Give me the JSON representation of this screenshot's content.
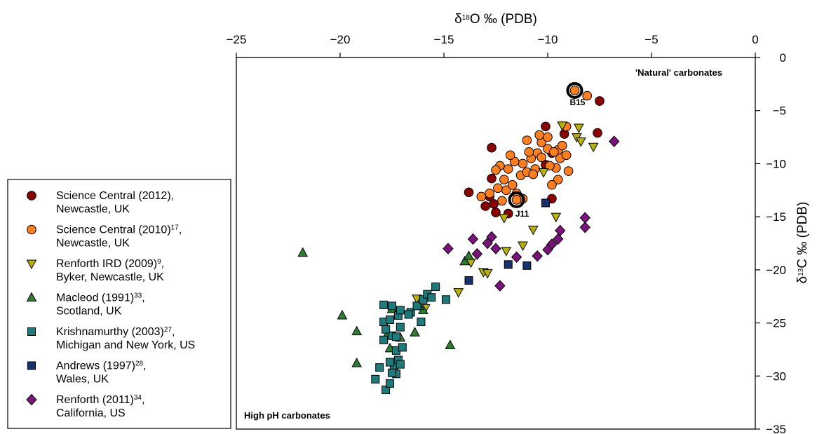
{
  "chart_data": {
    "type": "scatter",
    "xlabel": {
      "prefix": "δ",
      "sup": "18",
      "suffix": "O ‰ (PDB)"
    },
    "ylabel": {
      "prefix": "δ",
      "sup": "13",
      "suffix": "C ‰ (PDB)"
    },
    "xlim": [
      -25,
      0
    ],
    "ylim": [
      -35,
      0
    ],
    "xticks": [
      -25,
      -20,
      -15,
      -10,
      -5,
      0
    ],
    "yticks": [
      0,
      -5,
      -10,
      -15,
      -20,
      -25,
      -30,
      -35
    ],
    "x_axis_position": "top",
    "y_axis_position": "right",
    "grid": false,
    "legend_position": "left",
    "annotations": [
      {
        "text": "'Natural' carbonates",
        "x": -6.4,
        "y": -1.5
      },
      {
        "text": "High pH carbonates",
        "x": -24.7,
        "y": -33.3
      }
    ],
    "highlighted_points": [
      {
        "label": "B15",
        "x": -8.7,
        "y": -3.1
      },
      {
        "label": "J11",
        "x": -11.5,
        "y": -13.4
      }
    ],
    "series": [
      {
        "name": "Science Central (2012), Newcastle, UK",
        "legend": {
          "line1": "Science Central (2012),",
          "sup": "",
          "line2": "Newcastle, UK"
        },
        "marker": "circle",
        "color": "#8b0000",
        "points": [
          [
            -7.5,
            -4.1
          ],
          [
            -7.6,
            -7.1
          ],
          [
            -9.2,
            -7.2
          ],
          [
            -10.1,
            -6.5
          ],
          [
            -12.7,
            -8.5
          ],
          [
            -12.7,
            -11.4
          ],
          [
            -10.1,
            -10.1
          ],
          [
            -13.8,
            -12.7
          ],
          [
            -13.0,
            -14.0
          ],
          [
            -12.8,
            -13.1
          ],
          [
            -12.6,
            -13.8
          ],
          [
            -12.5,
            -14.6
          ],
          [
            -11.9,
            -14.7
          ],
          [
            -9.8,
            -13.3
          ],
          [
            -9.8,
            -9.0
          ]
        ]
      },
      {
        "name": "Science Central (2010), Newcastle, UK",
        "legend": {
          "line1": "Science Central (2010)",
          "sup": "17",
          "line2": "Newcastle, UK"
        },
        "marker": "circle",
        "color": "#ff7f1f",
        "points": [
          [
            -8.1,
            -3.6
          ],
          [
            -9.1,
            -6.5
          ],
          [
            -9.5,
            -8.7
          ],
          [
            -10.3,
            -8.0
          ],
          [
            -10.0,
            -7.5
          ],
          [
            -10.5,
            -9.0
          ],
          [
            -11.0,
            -7.8
          ],
          [
            -10.8,
            -9.5
          ],
          [
            -11.2,
            -10.0
          ],
          [
            -11.6,
            -9.8
          ],
          [
            -11.9,
            -10.5
          ],
          [
            -12.1,
            -11.5
          ],
          [
            -12.3,
            -10.2
          ],
          [
            -12.5,
            -10.6
          ],
          [
            -12.0,
            -12.5
          ],
          [
            -11.7,
            -12.0
          ],
          [
            -11.3,
            -11.1
          ],
          [
            -11.0,
            -10.8
          ],
          [
            -10.6,
            -10.5
          ],
          [
            -10.3,
            -9.4
          ],
          [
            -10.0,
            -8.6
          ],
          [
            -9.7,
            -8.9
          ],
          [
            -9.4,
            -9.5
          ],
          [
            -9.1,
            -9.2
          ],
          [
            -9.0,
            -10.7
          ],
          [
            -9.6,
            -10.4
          ],
          [
            -9.9,
            -10.2
          ],
          [
            -9.5,
            -11.5
          ],
          [
            -9.8,
            -12.0
          ],
          [
            -10.7,
            -11.0
          ],
          [
            -11.5,
            -12.8
          ],
          [
            -12.4,
            -12.3
          ],
          [
            -13.2,
            -13.1
          ],
          [
            -12.8,
            -12.8
          ],
          [
            -11.2,
            -13.3
          ],
          [
            -12.2,
            -13.5
          ],
          [
            -10.9,
            -8.9
          ],
          [
            -10.4,
            -7.3
          ],
          [
            -9.3,
            -8.3
          ],
          [
            -11.8,
            -9.2
          ]
        ]
      },
      {
        "name": "Renforth IRD (2009), Byker, Newcastle, UK",
        "legend": {
          "line1": "Renforth IRD (2009)",
          "sup": "9",
          "line2": "Byker, Newcastle, UK"
        },
        "marker": "triangle-down",
        "color": "#b7b300",
        "points": [
          [
            -8.5,
            -6.6
          ],
          [
            -9.3,
            -6.4
          ],
          [
            -8.6,
            -7.5
          ],
          [
            -8.4,
            -7.9
          ],
          [
            -7.8,
            -8.4
          ],
          [
            -10.2,
            -10.8
          ],
          [
            -12.1,
            -15.1
          ],
          [
            -9.6,
            -15.0
          ],
          [
            -10.7,
            -16.2
          ],
          [
            -11.2,
            -17.7
          ],
          [
            -12.0,
            -18.2
          ],
          [
            -13.1,
            -20.2
          ],
          [
            -12.9,
            -20.3
          ],
          [
            -13.7,
            -19.3
          ],
          [
            -14.3,
            -22.1
          ],
          [
            -16.3,
            -22.7
          ],
          [
            -15.9,
            -23.6
          ]
        ]
      },
      {
        "name": "Macleod (1991), Scotland, UK",
        "legend": {
          "line1": "Macleod (1991)",
          "sup": "33",
          "line2": "Scotland, UK"
        },
        "marker": "triangle-up",
        "color": "#2e7d32",
        "points": [
          [
            -21.8,
            -18.4
          ],
          [
            -19.9,
            -24.3
          ],
          [
            -19.2,
            -25.8
          ],
          [
            -19.2,
            -28.8
          ],
          [
            -17.7,
            -26.0
          ],
          [
            -17.1,
            -26.4
          ],
          [
            -17.5,
            -23.7
          ],
          [
            -16.4,
            -25.9
          ],
          [
            -16.0,
            -23.8
          ],
          [
            -14.7,
            -27.1
          ],
          [
            -14.0,
            -19.2
          ],
          [
            -13.8,
            -18.7
          ],
          [
            -17.6,
            -27.4
          ],
          [
            -16.2,
            -23.4
          ]
        ]
      },
      {
        "name": "Krishnamurthy (2003), Michigan and New York, US",
        "legend": {
          "line1": "Krishnamurthy (2003)",
          "sup": "27",
          "line2": "Michigan and New York, US"
        },
        "marker": "square",
        "color": "#1e7b7b",
        "points": [
          [
            -18.3,
            -30.3
          ],
          [
            -18.1,
            -29.2
          ],
          [
            -17.8,
            -31.3
          ],
          [
            -17.6,
            -30.7
          ],
          [
            -17.3,
            -29.8
          ],
          [
            -17.4,
            -29.0
          ],
          [
            -17.2,
            -28.5
          ],
          [
            -17.1,
            -28.9
          ],
          [
            -17.6,
            -28.7
          ],
          [
            -17.9,
            -26.6
          ],
          [
            -17.5,
            -26.2
          ],
          [
            -17.3,
            -27.6
          ],
          [
            -17.0,
            -27.3
          ],
          [
            -17.1,
            -25.4
          ],
          [
            -17.8,
            -25.6
          ],
          [
            -17.9,
            -24.9
          ],
          [
            -17.6,
            -24.7
          ],
          [
            -17.2,
            -24.3
          ],
          [
            -17.5,
            -23.4
          ],
          [
            -17.9,
            -23.3
          ],
          [
            -17.1,
            -23.8
          ],
          [
            -16.6,
            -24.0
          ],
          [
            -16.3,
            -23.4
          ],
          [
            -16.0,
            -22.8
          ],
          [
            -15.8,
            -22.3
          ],
          [
            -15.6,
            -22.6
          ],
          [
            -15.4,
            -21.6
          ],
          [
            -16.7,
            -24.2
          ],
          [
            -16.1,
            -24.9
          ],
          [
            -14.9,
            -22.8
          ],
          [
            -17.5,
            -29.7
          ],
          [
            -17.3,
            -26.3
          ]
        ]
      },
      {
        "name": "Andrews (1997), Wales, UK",
        "legend": {
          "line1": "Andrews (1997)",
          "sup": "28",
          "line2": "Wales, UK"
        },
        "marker": "square",
        "color": "#17306e",
        "points": [
          [
            -10.1,
            -13.7
          ],
          [
            -11.9,
            -19.5
          ],
          [
            -11.0,
            -19.6
          ],
          [
            -13.8,
            -21.0
          ]
        ]
      },
      {
        "name": "Renforth (2011), California, US",
        "legend": {
          "line1": "Renforth (2011)",
          "sup": "34",
          "line2": "California, US"
        },
        "marker": "diamond",
        "color": "#7a137a",
        "points": [
          [
            -6.8,
            -7.9
          ],
          [
            -8.2,
            -15.1
          ],
          [
            -8.2,
            -16.0
          ],
          [
            -9.4,
            -16.3
          ],
          [
            -9.5,
            -17.1
          ],
          [
            -9.8,
            -17.6
          ],
          [
            -10.0,
            -18.1
          ],
          [
            -10.5,
            -18.7
          ],
          [
            -11.5,
            -18.8
          ],
          [
            -12.3,
            -21.5
          ],
          [
            -12.5,
            -18.0
          ],
          [
            -12.9,
            -17.5
          ],
          [
            -12.7,
            -16.9
          ],
          [
            -13.4,
            -18.5
          ],
          [
            -13.6,
            -17.1
          ],
          [
            -14.8,
            -18.0
          ]
        ]
      }
    ]
  }
}
